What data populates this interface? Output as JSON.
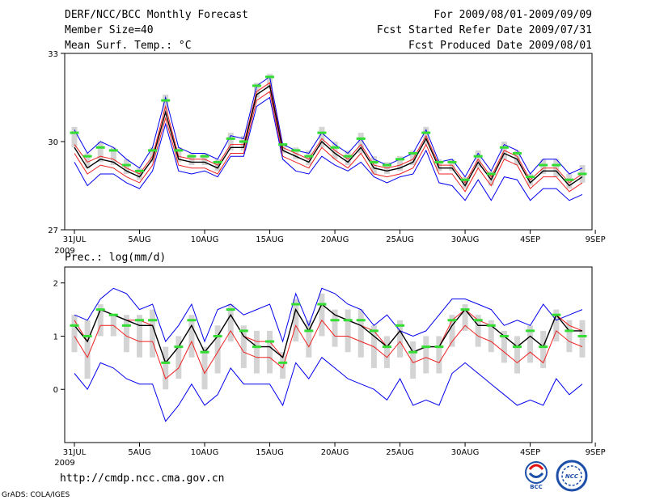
{
  "header": {
    "title": "DERF/NCC/BCC Monthly Forecast",
    "member_size": "Member Size=40",
    "variable_1": "Mean Surf. Temp.: °C",
    "period": "For 2009/08/01-2009/09/09",
    "started": "Fcst Started Refer Date 2009/07/31",
    "produced": "Fcst Produced Date 2009/08/01"
  },
  "footer": {
    "url": "http://cmdp.ncc.cma.gov.cn",
    "grads": "GrADS: COLA/IGES",
    "logo_bcc": "BCC",
    "logo_ncc": "NCC"
  },
  "colors": {
    "envelope": "#0000ee",
    "spread": "#ee2222",
    "mean": "#000000",
    "box": "#d4d4d4",
    "marker": "#33dd33",
    "axis": "#000000"
  },
  "chart_data": [
    {
      "type": "line",
      "title": "Mean Surf. Temp.: °C",
      "x_tick_labels": [
        "31JUL",
        "5AUG",
        "10AUG",
        "15AUG",
        "20AUG",
        "25AUG",
        "30AUG",
        "4SEP",
        "9SEP"
      ],
      "x_year_label": "2009",
      "ylim": [
        27,
        33
      ],
      "yticks": [
        27,
        30,
        33
      ],
      "days": 40,
      "series": [
        {
          "name": "upper",
          "color_key": "envelope",
          "values": [
            30.4,
            29.6,
            30.0,
            29.8,
            29.4,
            29.1,
            29.8,
            31.5,
            29.8,
            29.6,
            29.6,
            29.4,
            30.2,
            30.1,
            31.9,
            32.2,
            29.9,
            29.7,
            29.6,
            30.3,
            29.9,
            29.6,
            30.1,
            29.4,
            29.2,
            29.4,
            29.6,
            30.4,
            29.3,
            29.4,
            28.8,
            29.6,
            29.0,
            29.9,
            29.7,
            28.9,
            29.4,
            29.4,
            28.9,
            29.1
          ]
        },
        {
          "name": "spread_high",
          "color_key": "spread",
          "values": [
            29.9,
            29.3,
            29.5,
            29.4,
            29.1,
            28.9,
            29.5,
            31.2,
            29.5,
            29.4,
            29.4,
            29.2,
            29.9,
            29.9,
            31.7,
            32.0,
            29.8,
            29.6,
            29.4,
            30.1,
            29.7,
            29.4,
            29.9,
            29.2,
            29.1,
            29.2,
            29.4,
            30.2,
            29.2,
            29.2,
            28.6,
            29.4,
            28.8,
            29.7,
            29.5,
            28.7,
            29.1,
            29.1,
            28.6,
            28.9
          ]
        },
        {
          "name": "mean",
          "color_key": "mean",
          "values": [
            29.8,
            29.1,
            29.4,
            29.3,
            29.0,
            28.8,
            29.4,
            31.0,
            29.4,
            29.3,
            29.3,
            29.1,
            29.8,
            29.8,
            31.6,
            31.9,
            29.7,
            29.5,
            29.3,
            30.0,
            29.6,
            29.3,
            29.8,
            29.1,
            29.0,
            29.1,
            29.3,
            30.1,
            29.1,
            29.1,
            28.5,
            29.3,
            28.7,
            29.6,
            29.4,
            28.6,
            29.0,
            29.0,
            28.5,
            28.8
          ]
        },
        {
          "name": "spread_low",
          "color_key": "spread",
          "values": [
            29.6,
            28.9,
            29.2,
            29.1,
            28.8,
            28.6,
            29.2,
            30.8,
            29.2,
            29.1,
            29.1,
            28.9,
            29.6,
            29.6,
            31.4,
            31.7,
            29.5,
            29.3,
            29.1,
            29.8,
            29.4,
            29.1,
            29.6,
            28.9,
            28.8,
            28.9,
            29.1,
            29.9,
            28.9,
            28.9,
            28.3,
            29.1,
            28.5,
            29.4,
            29.2,
            28.4,
            28.8,
            28.8,
            28.3,
            28.6
          ]
        },
        {
          "name": "lower",
          "color_key": "envelope",
          "values": [
            29.3,
            28.5,
            28.9,
            28.9,
            28.6,
            28.4,
            29.0,
            30.6,
            29.0,
            28.9,
            29.0,
            28.8,
            29.5,
            29.5,
            31.2,
            31.5,
            29.4,
            29.0,
            28.9,
            29.5,
            29.2,
            29.0,
            29.3,
            28.8,
            28.6,
            28.8,
            28.9,
            29.7,
            28.6,
            28.5,
            28.0,
            28.7,
            28.0,
            28.8,
            28.7,
            28.0,
            28.4,
            28.4,
            28.0,
            28.2
          ]
        }
      ],
      "box_low": [
        29.8,
        29.1,
        29.3,
        29.2,
        28.9,
        28.7,
        29.3,
        30.9,
        29.3,
        29.2,
        29.2,
        29.0,
        29.7,
        29.7,
        31.5,
        31.8,
        29.6,
        29.4,
        29.2,
        29.8,
        29.4,
        29.2,
        29.6,
        28.9,
        28.9,
        29.0,
        29.2,
        29.9,
        29.0,
        29.0,
        28.4,
        29.1,
        28.5,
        29.4,
        29.2,
        28.5,
        28.9,
        28.8,
        28.4,
        28.6
      ],
      "box_high": [
        30.5,
        29.6,
        30.0,
        29.8,
        29.4,
        29.1,
        29.8,
        31.6,
        29.8,
        29.6,
        29.6,
        29.4,
        30.3,
        30.2,
        32.0,
        32.3,
        29.9,
        29.8,
        29.7,
        30.5,
        30.0,
        29.7,
        30.3,
        29.5,
        29.3,
        29.5,
        29.7,
        30.5,
        29.4,
        29.4,
        28.8,
        29.7,
        29.0,
        30.0,
        29.7,
        28.9,
        29.4,
        29.4,
        28.9,
        29.2
      ],
      "markers": [
        30.3,
        29.5,
        29.8,
        29.7,
        29.2,
        29.0,
        29.7,
        31.4,
        29.7,
        29.5,
        29.5,
        29.3,
        30.1,
        30.0,
        31.9,
        32.2,
        29.9,
        29.7,
        29.5,
        30.3,
        29.8,
        29.5,
        30.1,
        29.3,
        29.2,
        29.4,
        29.6,
        30.3,
        29.3,
        29.3,
        28.7,
        29.5,
        28.9,
        29.8,
        29.6,
        28.8,
        29.2,
        29.2,
        28.7,
        28.9
      ]
    },
    {
      "type": "line",
      "title": "Prec.: log(mm/d)",
      "x_tick_labels": [
        "31JUL",
        "5AUG",
        "10AUG",
        "15AUG",
        "20AUG",
        "25AUG",
        "30AUG",
        "4SEP",
        "9SEP"
      ],
      "x_year_label": "2009",
      "ylim": [
        -1,
        2.3
      ],
      "yticks": [
        0,
        1,
        2
      ],
      "days": 40,
      "series": [
        {
          "name": "upper",
          "color_key": "envelope",
          "values": [
            1.4,
            1.3,
            1.7,
            1.9,
            1.8,
            1.5,
            1.6,
            0.9,
            1.2,
            1.6,
            0.9,
            1.5,
            1.6,
            1.4,
            1.5,
            1.6,
            0.9,
            1.8,
            1.2,
            1.9,
            1.8,
            1.6,
            1.5,
            1.2,
            1.4,
            1.1,
            1.0,
            1.1,
            1.4,
            1.7,
            1.7,
            1.6,
            1.5,
            1.2,
            1.3,
            1.2,
            1.6,
            1.3,
            1.4,
            1.5
          ]
        },
        {
          "name": "spread_high",
          "color_key": "spread",
          "values": [
            1.3,
            0.9,
            1.5,
            1.4,
            1.3,
            1.3,
            1.2,
            0.5,
            0.8,
            1.2,
            0.7,
            1.0,
            1.4,
            1.0,
            0.9,
            0.9,
            0.6,
            1.5,
            1.1,
            1.6,
            1.4,
            1.3,
            1.2,
            1.1,
            0.8,
            1.1,
            0.7,
            0.8,
            0.8,
            1.3,
            1.5,
            1.3,
            1.2,
            1.0,
            0.8,
            1.0,
            0.8,
            1.4,
            1.2,
            1.1
          ]
        },
        {
          "name": "mean",
          "color_key": "mean",
          "values": [
            1.2,
            0.9,
            1.5,
            1.4,
            1.3,
            1.2,
            1.2,
            0.5,
            0.8,
            1.2,
            0.7,
            1.0,
            1.4,
            1.0,
            0.8,
            0.8,
            0.6,
            1.5,
            1.1,
            1.6,
            1.4,
            1.3,
            1.2,
            1.0,
            0.8,
            1.1,
            0.7,
            0.8,
            0.8,
            1.2,
            1.5,
            1.2,
            1.2,
            1.0,
            0.8,
            1.0,
            0.8,
            1.4,
            1.1,
            1.1
          ]
        },
        {
          "name": "spread_low",
          "color_key": "spread",
          "values": [
            1.0,
            0.6,
            1.2,
            1.2,
            1.0,
            0.9,
            0.9,
            0.2,
            0.4,
            0.9,
            0.3,
            0.7,
            1.1,
            0.7,
            0.6,
            0.6,
            0.4,
            1.2,
            0.8,
            1.3,
            1.0,
            1.0,
            0.9,
            0.8,
            0.6,
            0.9,
            0.5,
            0.6,
            0.5,
            0.9,
            1.2,
            1.0,
            0.9,
            0.7,
            0.5,
            0.7,
            0.5,
            1.1,
            0.9,
            0.8
          ]
        },
        {
          "name": "lower",
          "color_key": "envelope",
          "values": [
            0.3,
            0.0,
            0.5,
            0.4,
            0.2,
            0.1,
            0.1,
            -0.6,
            -0.3,
            0.1,
            -0.3,
            -0.1,
            0.4,
            0.1,
            0.1,
            0.1,
            -0.3,
            0.5,
            0.2,
            0.6,
            0.4,
            0.2,
            0.1,
            0.0,
            -0.2,
            0.2,
            -0.3,
            -0.2,
            -0.3,
            0.3,
            0.5,
            0.3,
            0.1,
            -0.1,
            -0.3,
            -0.2,
            -0.3,
            0.2,
            -0.1,
            0.1
          ]
        }
      ],
      "box_low": [
        0.7,
        0.2,
        1.0,
        1.0,
        0.7,
        0.6,
        0.6,
        0.0,
        0.2,
        0.6,
        0.0,
        0.3,
        0.9,
        0.4,
        0.3,
        0.3,
        0.2,
        0.9,
        0.6,
        1.0,
        0.8,
        0.7,
        0.6,
        0.4,
        0.4,
        0.6,
        0.2,
        0.3,
        0.3,
        0.8,
        1.1,
        0.8,
        0.7,
        0.5,
        0.3,
        0.5,
        0.4,
        0.9,
        0.7,
        0.6
      ],
      "box_high": [
        1.4,
        1.3,
        1.6,
        1.4,
        1.4,
        1.4,
        1.5,
        0.8,
        1.0,
        1.4,
        0.8,
        1.2,
        1.6,
        1.2,
        1.1,
        1.1,
        0.7,
        1.7,
        1.3,
        1.8,
        1.5,
        1.5,
        1.5,
        1.2,
        1.0,
        1.3,
        0.9,
        1.0,
        1.0,
        1.4,
        1.6,
        1.4,
        1.3,
        1.1,
        1.0,
        1.2,
        1.1,
        1.5,
        1.3,
        1.3
      ],
      "markers": [
        1.2,
        1.0,
        1.5,
        1.4,
        1.2,
        1.3,
        1.3,
        0.5,
        0.8,
        1.3,
        0.7,
        1.0,
        1.5,
        1.1,
        0.8,
        0.9,
        0.5,
        1.6,
        1.1,
        1.6,
        1.3,
        1.3,
        1.3,
        1.1,
        0.8,
        1.2,
        0.7,
        0.8,
        0.8,
        1.3,
        1.5,
        1.3,
        1.2,
        1.0,
        0.8,
        1.1,
        0.8,
        1.4,
        1.1,
        1.0
      ]
    }
  ]
}
